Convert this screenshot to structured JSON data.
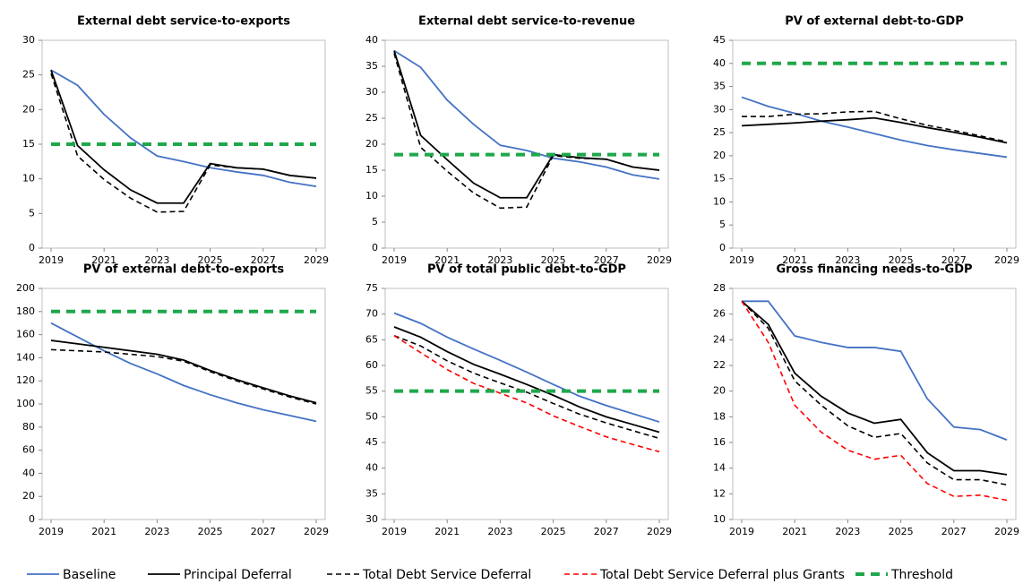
{
  "chart_data": [
    {
      "type": "line",
      "title": "External debt service-to-exports",
      "x": [
        2019,
        2020,
        2021,
        2022,
        2023,
        2024,
        2025,
        2026,
        2027,
        2028,
        2029
      ],
      "xlim": [
        2019,
        2029
      ],
      "xticks": [
        2019,
        2021,
        2023,
        2025,
        2027,
        2029
      ],
      "ylim": [
        0,
        30
      ],
      "yticks": [
        0,
        5,
        10,
        15,
        20,
        25,
        30
      ],
      "series": [
        {
          "name": "Baseline",
          "color": "#4472c4",
          "line_style": "solid",
          "line_width": 1.8,
          "values": [
            25.7,
            23.5,
            19.3,
            15.9,
            13.3,
            12.5,
            11.6,
            11.0,
            10.5,
            9.5,
            8.9
          ]
        },
        {
          "name": "Principal Deferral",
          "color": "#000000",
          "line_style": "solid",
          "line_width": 1.8,
          "values": [
            25.7,
            14.8,
            11.3,
            8.4,
            6.5,
            6.5,
            12.2,
            11.6,
            11.4,
            10.5,
            10.1
          ]
        },
        {
          "name": "Total Debt Service Deferral",
          "color": "#000000",
          "line_style": "dashed",
          "line_width": 1.6,
          "values": [
            25.2,
            13.3,
            9.9,
            7.2,
            5.2,
            5.3,
            12.0,
            11.6,
            11.4,
            10.5,
            10.1
          ]
        },
        {
          "name": "Threshold",
          "color": "#1ea84a",
          "line_style": "dashed",
          "line_width": 4,
          "values": [
            15,
            15,
            15,
            15,
            15,
            15,
            15,
            15,
            15,
            15,
            15
          ]
        }
      ]
    },
    {
      "type": "line",
      "title": "External debt service-to-revenue",
      "x": [
        2019,
        2020,
        2021,
        2022,
        2023,
        2024,
        2025,
        2026,
        2027,
        2028,
        2029
      ],
      "xlim": [
        2019,
        2029
      ],
      "xticks": [
        2019,
        2021,
        2023,
        2025,
        2027,
        2029
      ],
      "ylim": [
        0,
        40
      ],
      "yticks": [
        0,
        5,
        10,
        15,
        20,
        25,
        30,
        35,
        40
      ],
      "series": [
        {
          "name": "Baseline",
          "color": "#4472c4",
          "line_style": "solid",
          "line_width": 1.8,
          "values": [
            38,
            34.8,
            28.5,
            23.8,
            19.8,
            18.8,
            17.3,
            16.6,
            15.6,
            14.1,
            13.3
          ]
        },
        {
          "name": "Principal Deferral",
          "color": "#000000",
          "line_style": "solid",
          "line_width": 1.8,
          "values": [
            38,
            21.7,
            17,
            12.5,
            9.7,
            9.7,
            18,
            17.4,
            17.1,
            15.6,
            15.0
          ]
        },
        {
          "name": "Total Debt Service Deferral",
          "color": "#000000",
          "line_style": "dashed",
          "line_width": 1.6,
          "values": [
            37.5,
            19.4,
            14.8,
            10.6,
            7.7,
            7.9,
            17.8,
            17.3,
            17.1,
            15.6,
            15.0
          ]
        },
        {
          "name": "Threshold",
          "color": "#1ea84a",
          "line_style": "dashed",
          "line_width": 4,
          "values": [
            18,
            18,
            18,
            18,
            18,
            18,
            18,
            18,
            18,
            18,
            18
          ]
        }
      ]
    },
    {
      "type": "line",
      "title": "PV of external debt-to-GDP",
      "x": [
        2019,
        2020,
        2021,
        2022,
        2023,
        2024,
        2025,
        2026,
        2027,
        2028,
        2029
      ],
      "xlim": [
        2019,
        2029
      ],
      "xticks": [
        2019,
        2021,
        2023,
        2025,
        2027,
        2029
      ],
      "ylim": [
        0,
        45
      ],
      "yticks": [
        0,
        5,
        10,
        15,
        20,
        25,
        30,
        35,
        40,
        45
      ],
      "series": [
        {
          "name": "Baseline",
          "color": "#4472c4",
          "line_style": "solid",
          "line_width": 1.8,
          "values": [
            32.7,
            30.7,
            29.2,
            27.5,
            26.2,
            24.8,
            23.4,
            22.2,
            21.3,
            20.5,
            19.7
          ]
        },
        {
          "name": "Principal Deferral",
          "color": "#000000",
          "line_style": "solid",
          "line_width": 1.8,
          "values": [
            26.5,
            26.8,
            27.1,
            27.5,
            27.8,
            28.2,
            27.2,
            26.1,
            25.1,
            24.0,
            22.8
          ]
        },
        {
          "name": "Total Debt Service Deferral",
          "color": "#000000",
          "line_style": "dashed",
          "line_width": 1.6,
          "values": [
            28.5,
            28.5,
            29.0,
            29.1,
            29.5,
            29.6,
            28.0,
            26.6,
            25.5,
            24.3,
            23.0
          ]
        },
        {
          "name": "Threshold",
          "color": "#1ea84a",
          "line_style": "dashed",
          "line_width": 4,
          "values": [
            40,
            40,
            40,
            40,
            40,
            40,
            40,
            40,
            40,
            40,
            40
          ]
        }
      ]
    },
    {
      "type": "line",
      "title": "PV of external debt-to-exports",
      "x": [
        2019,
        2020,
        2021,
        2022,
        2023,
        2024,
        2025,
        2026,
        2027,
        2028,
        2029
      ],
      "xlim": [
        2019,
        2029
      ],
      "xticks": [
        2019,
        2021,
        2023,
        2025,
        2027,
        2029
      ],
      "ylim": [
        0,
        200
      ],
      "yticks": [
        0,
        20,
        40,
        60,
        80,
        100,
        120,
        140,
        160,
        180,
        200
      ],
      "series": [
        {
          "name": "Baseline",
          "color": "#4472c4",
          "line_style": "solid",
          "line_width": 1.8,
          "values": [
            170,
            158,
            146,
            135,
            126,
            116,
            108,
            101,
            95,
            90,
            85
          ]
        },
        {
          "name": "Principal Deferral",
          "color": "#000000",
          "line_style": "solid",
          "line_width": 1.8,
          "values": [
            155,
            152,
            149,
            146,
            143,
            138,
            129,
            121,
            114,
            107,
            101
          ]
        },
        {
          "name": "Total Debt Service Deferral",
          "color": "#000000",
          "line_style": "dashed",
          "line_width": 1.6,
          "values": [
            147,
            146,
            145,
            143,
            141,
            137,
            128,
            120,
            113,
            106,
            100
          ]
        },
        {
          "name": "Threshold",
          "color": "#1ea84a",
          "line_style": "dashed",
          "line_width": 4,
          "values": [
            180,
            180,
            180,
            180,
            180,
            180,
            180,
            180,
            180,
            180,
            180
          ]
        }
      ]
    },
    {
      "type": "line",
      "title": "PV of  total public debt-to-GDP",
      "x": [
        2019,
        2020,
        2021,
        2022,
        2023,
        2024,
        2025,
        2026,
        2027,
        2028,
        2029
      ],
      "xlim": [
        2019,
        2029
      ],
      "xticks": [
        2019,
        2021,
        2023,
        2025,
        2027,
        2029
      ],
      "ylim": [
        30,
        75
      ],
      "yticks": [
        30,
        35,
        40,
        45,
        50,
        55,
        60,
        65,
        70,
        75
      ],
      "series": [
        {
          "name": "Baseline",
          "color": "#4472c4",
          "line_style": "solid",
          "line_width": 1.8,
          "values": [
            70.2,
            68.2,
            65.5,
            63.2,
            61.0,
            58.7,
            56.3,
            54.0,
            52.2,
            50.6,
            49.0
          ]
        },
        {
          "name": "Principal Deferral",
          "color": "#000000",
          "line_style": "solid",
          "line_width": 1.8,
          "values": [
            67.5,
            65.5,
            62.7,
            60.2,
            58.3,
            56.3,
            54.2,
            51.9,
            50.0,
            48.5,
            47.0
          ]
        },
        {
          "name": "Total Debt Service Deferral",
          "color": "#000000",
          "line_style": "dashed",
          "line_width": 1.6,
          "values": [
            65.8,
            63.8,
            60.9,
            58.5,
            56.6,
            54.8,
            52.6,
            50.5,
            48.8,
            47.3,
            45.8
          ]
        },
        {
          "name": "Total Debt Service Deferral plus Grants",
          "color": "#ff0000",
          "line_style": "dashed",
          "line_width": 1.6,
          "values": [
            65.8,
            62.5,
            59.2,
            56.5,
            54.6,
            52.7,
            50.2,
            48.1,
            46.1,
            44.6,
            43.2
          ]
        },
        {
          "name": "Threshold",
          "color": "#1ea84a",
          "line_style": "dashed",
          "line_width": 4,
          "values": [
            55,
            55,
            55,
            55,
            55,
            55,
            55,
            55,
            55,
            55,
            55
          ]
        }
      ]
    },
    {
      "type": "line",
      "title": "Gross financing  needs-to-GDP",
      "x": [
        2019,
        2020,
        2021,
        2022,
        2023,
        2024,
        2025,
        2026,
        2027,
        2028,
        2029
      ],
      "xlim": [
        2019,
        2029
      ],
      "xticks": [
        2019,
        2021,
        2023,
        2025,
        2027,
        2029
      ],
      "ylim": [
        10,
        28
      ],
      "yticks": [
        10,
        12,
        14,
        16,
        18,
        20,
        22,
        24,
        26,
        28
      ],
      "series": [
        {
          "name": "Baseline",
          "color": "#4472c4",
          "line_style": "solid",
          "line_width": 1.8,
          "values": [
            27,
            27,
            24.3,
            23.8,
            23.4,
            23.4,
            23.1,
            19.4,
            17.2,
            17.0,
            16.2
          ]
        },
        {
          "name": "Principal Deferral",
          "color": "#000000",
          "line_style": "solid",
          "line_width": 1.8,
          "values": [
            27,
            25.2,
            21.4,
            19.6,
            18.3,
            17.5,
            17.8,
            15.2,
            13.8,
            13.8,
            13.5
          ]
        },
        {
          "name": "Total Debt Service Deferral",
          "color": "#000000",
          "line_style": "dashed",
          "line_width": 1.6,
          "values": [
            27,
            24.9,
            20.8,
            18.9,
            17.3,
            16.4,
            16.7,
            14.4,
            13.1,
            13.1,
            12.7
          ]
        },
        {
          "name": "Total Debt Service Deferral plus Grants",
          "color": "#ff0000",
          "line_style": "dashed",
          "line_width": 1.6,
          "values": [
            27,
            23.8,
            18.9,
            16.8,
            15.4,
            14.7,
            15.0,
            12.8,
            11.8,
            11.9,
            11.5
          ]
        }
      ]
    }
  ]
}
